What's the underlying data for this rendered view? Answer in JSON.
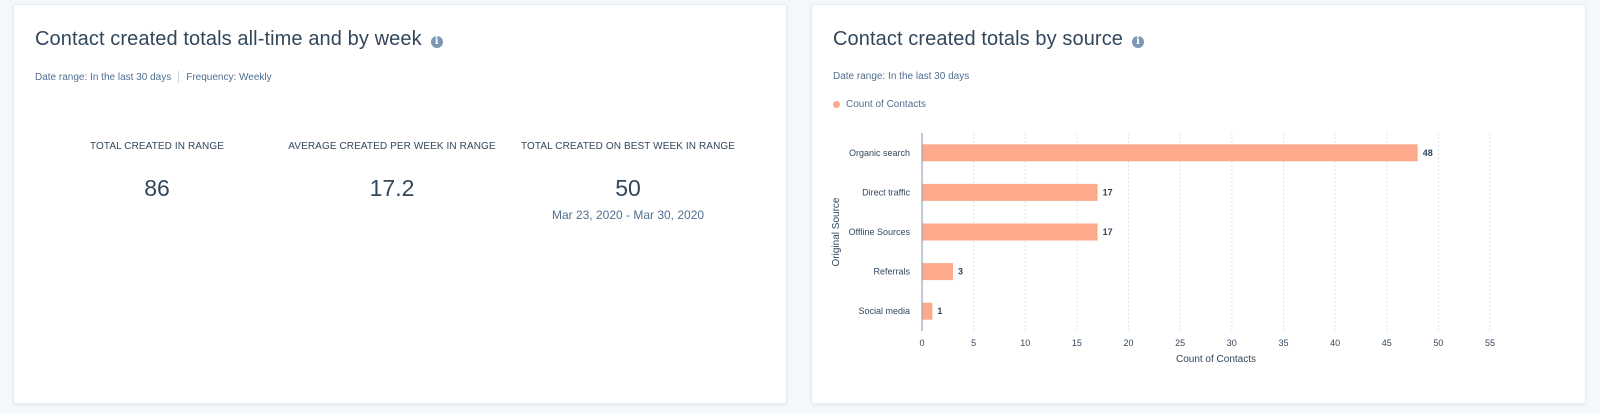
{
  "left_card": {
    "title": "Contact created totals all-time and by week",
    "date_range_label": "Date range:",
    "date_range_value": "In the last 30 days",
    "frequency_label": "Frequency:",
    "frequency_value": "Weekly",
    "kpis": [
      {
        "label": "TOTAL CREATED IN RANGE",
        "value": "86",
        "sub": ""
      },
      {
        "label": "AVERAGE CREATED PER WEEK IN RANGE",
        "value": "17.2",
        "sub": ""
      },
      {
        "label": "TOTAL CREATED ON BEST WEEK IN RANGE",
        "value": "50",
        "sub": "Mar 23, 2020 - Mar 30, 2020"
      }
    ]
  },
  "right_card": {
    "title": "Contact created totals by source",
    "date_range_label": "Date range:",
    "date_range_value": "In the last 30 days",
    "legend_label": "Count of Contacts"
  },
  "colors": {
    "bar": "#ffa98c",
    "text": "#33475b",
    "muted": "#516f90",
    "axis": "#7c98b6",
    "grid": "#dfe3eb",
    "info_icon": "#7c98b6"
  },
  "chart_data": {
    "type": "bar",
    "orientation": "horizontal",
    "categories": [
      "Organic search",
      "Direct traffic",
      "Offline Sources",
      "Referrals",
      "Social media"
    ],
    "series": [
      {
        "name": "Count of Contacts",
        "values": [
          48,
          17,
          17,
          3,
          1
        ]
      }
    ],
    "xlabel": "Count of Contacts",
    "ylabel": "Original Source",
    "xlim": [
      0,
      55
    ],
    "xticks": [
      0,
      5,
      10,
      15,
      20,
      25,
      30,
      35,
      40,
      45,
      50,
      55
    ],
    "data_labels": true,
    "grid": "vertical dashed",
    "legend": "top-left"
  }
}
